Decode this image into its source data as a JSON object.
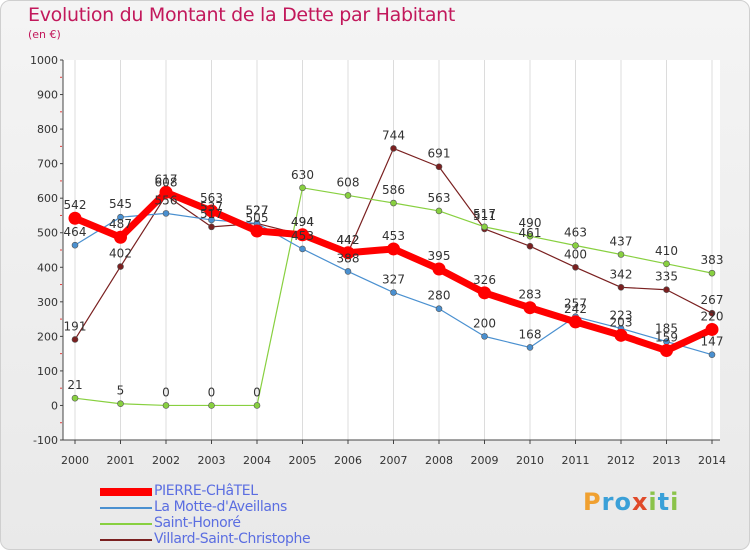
{
  "title": "Evolution du Montant de la Dette par Habitant",
  "subtitle": "(en €)",
  "logo": {
    "text": "Proxiti",
    "letters": [
      "P",
      "r",
      "o",
      "x",
      "i",
      "t",
      "i"
    ]
  },
  "chart_data": {
    "type": "line",
    "title": "Evolution du Montant de la Dette par Habitant",
    "xlabel": "",
    "ylabel": "(en €)",
    "x": [
      "2000",
      "2001",
      "2002",
      "2003",
      "2004",
      "2005",
      "2006",
      "2007",
      "2008",
      "2009",
      "2010",
      "2011",
      "2012",
      "2013",
      "2014"
    ],
    "ylim": [
      -100,
      1000
    ],
    "yticks": [
      "-100",
      "0",
      "100",
      "200",
      "300",
      "400",
      "500",
      "600",
      "700",
      "800",
      "900",
      "1000"
    ],
    "grid": "vertical",
    "legend_position": "bottom-left",
    "series": [
      {
        "name": "PIERRE-CHâTEL",
        "color": "#ff0000",
        "values": [
          542,
          487,
          617,
          563,
          505,
          494,
          442,
          453,
          395,
          326,
          283,
          242,
          203,
          159,
          220
        ],
        "labels": [
          "542",
          "487",
          "617",
          "563",
          "505",
          "494",
          "442",
          "453",
          "395",
          "326",
          "283",
          "242",
          "203",
          "159",
          "220"
        ]
      },
      {
        "name": "La Motte-d'Aveillans",
        "color": "#4a90d0",
        "values": [
          464,
          545,
          556,
          537,
          527,
          453,
          388,
          327,
          280,
          200,
          168,
          257,
          223,
          185,
          147
        ],
        "labels": [
          "464",
          "545",
          "556",
          "537",
          "527",
          "453",
          "388",
          "327",
          "280",
          "200",
          "168",
          "257",
          "223",
          "185",
          "147"
        ]
      },
      {
        "name": "Saint-Honoré",
        "color": "#88d040",
        "values": [
          21,
          5,
          0,
          0,
          0,
          630,
          608,
          586,
          563,
          517,
          490,
          463,
          437,
          410,
          383
        ],
        "labels": [
          "21",
          "5",
          "0",
          "0",
          "0",
          "630",
          "608",
          "586",
          "563",
          "517",
          "490",
          "463",
          "437",
          "410",
          "383"
        ]
      },
      {
        "name": "Villard-Saint-Christophe",
        "color": "#7a2020",
        "values": [
          191,
          402,
          608,
          517,
          527,
          494,
          442,
          744,
          691,
          511,
          461,
          400,
          342,
          335,
          267
        ],
        "labels": [
          "191",
          "402",
          "608",
          "517",
          "527",
          "494",
          "442",
          "744",
          "691",
          "511",
          "461",
          "400",
          "342",
          "335",
          "267"
        ]
      }
    ]
  }
}
